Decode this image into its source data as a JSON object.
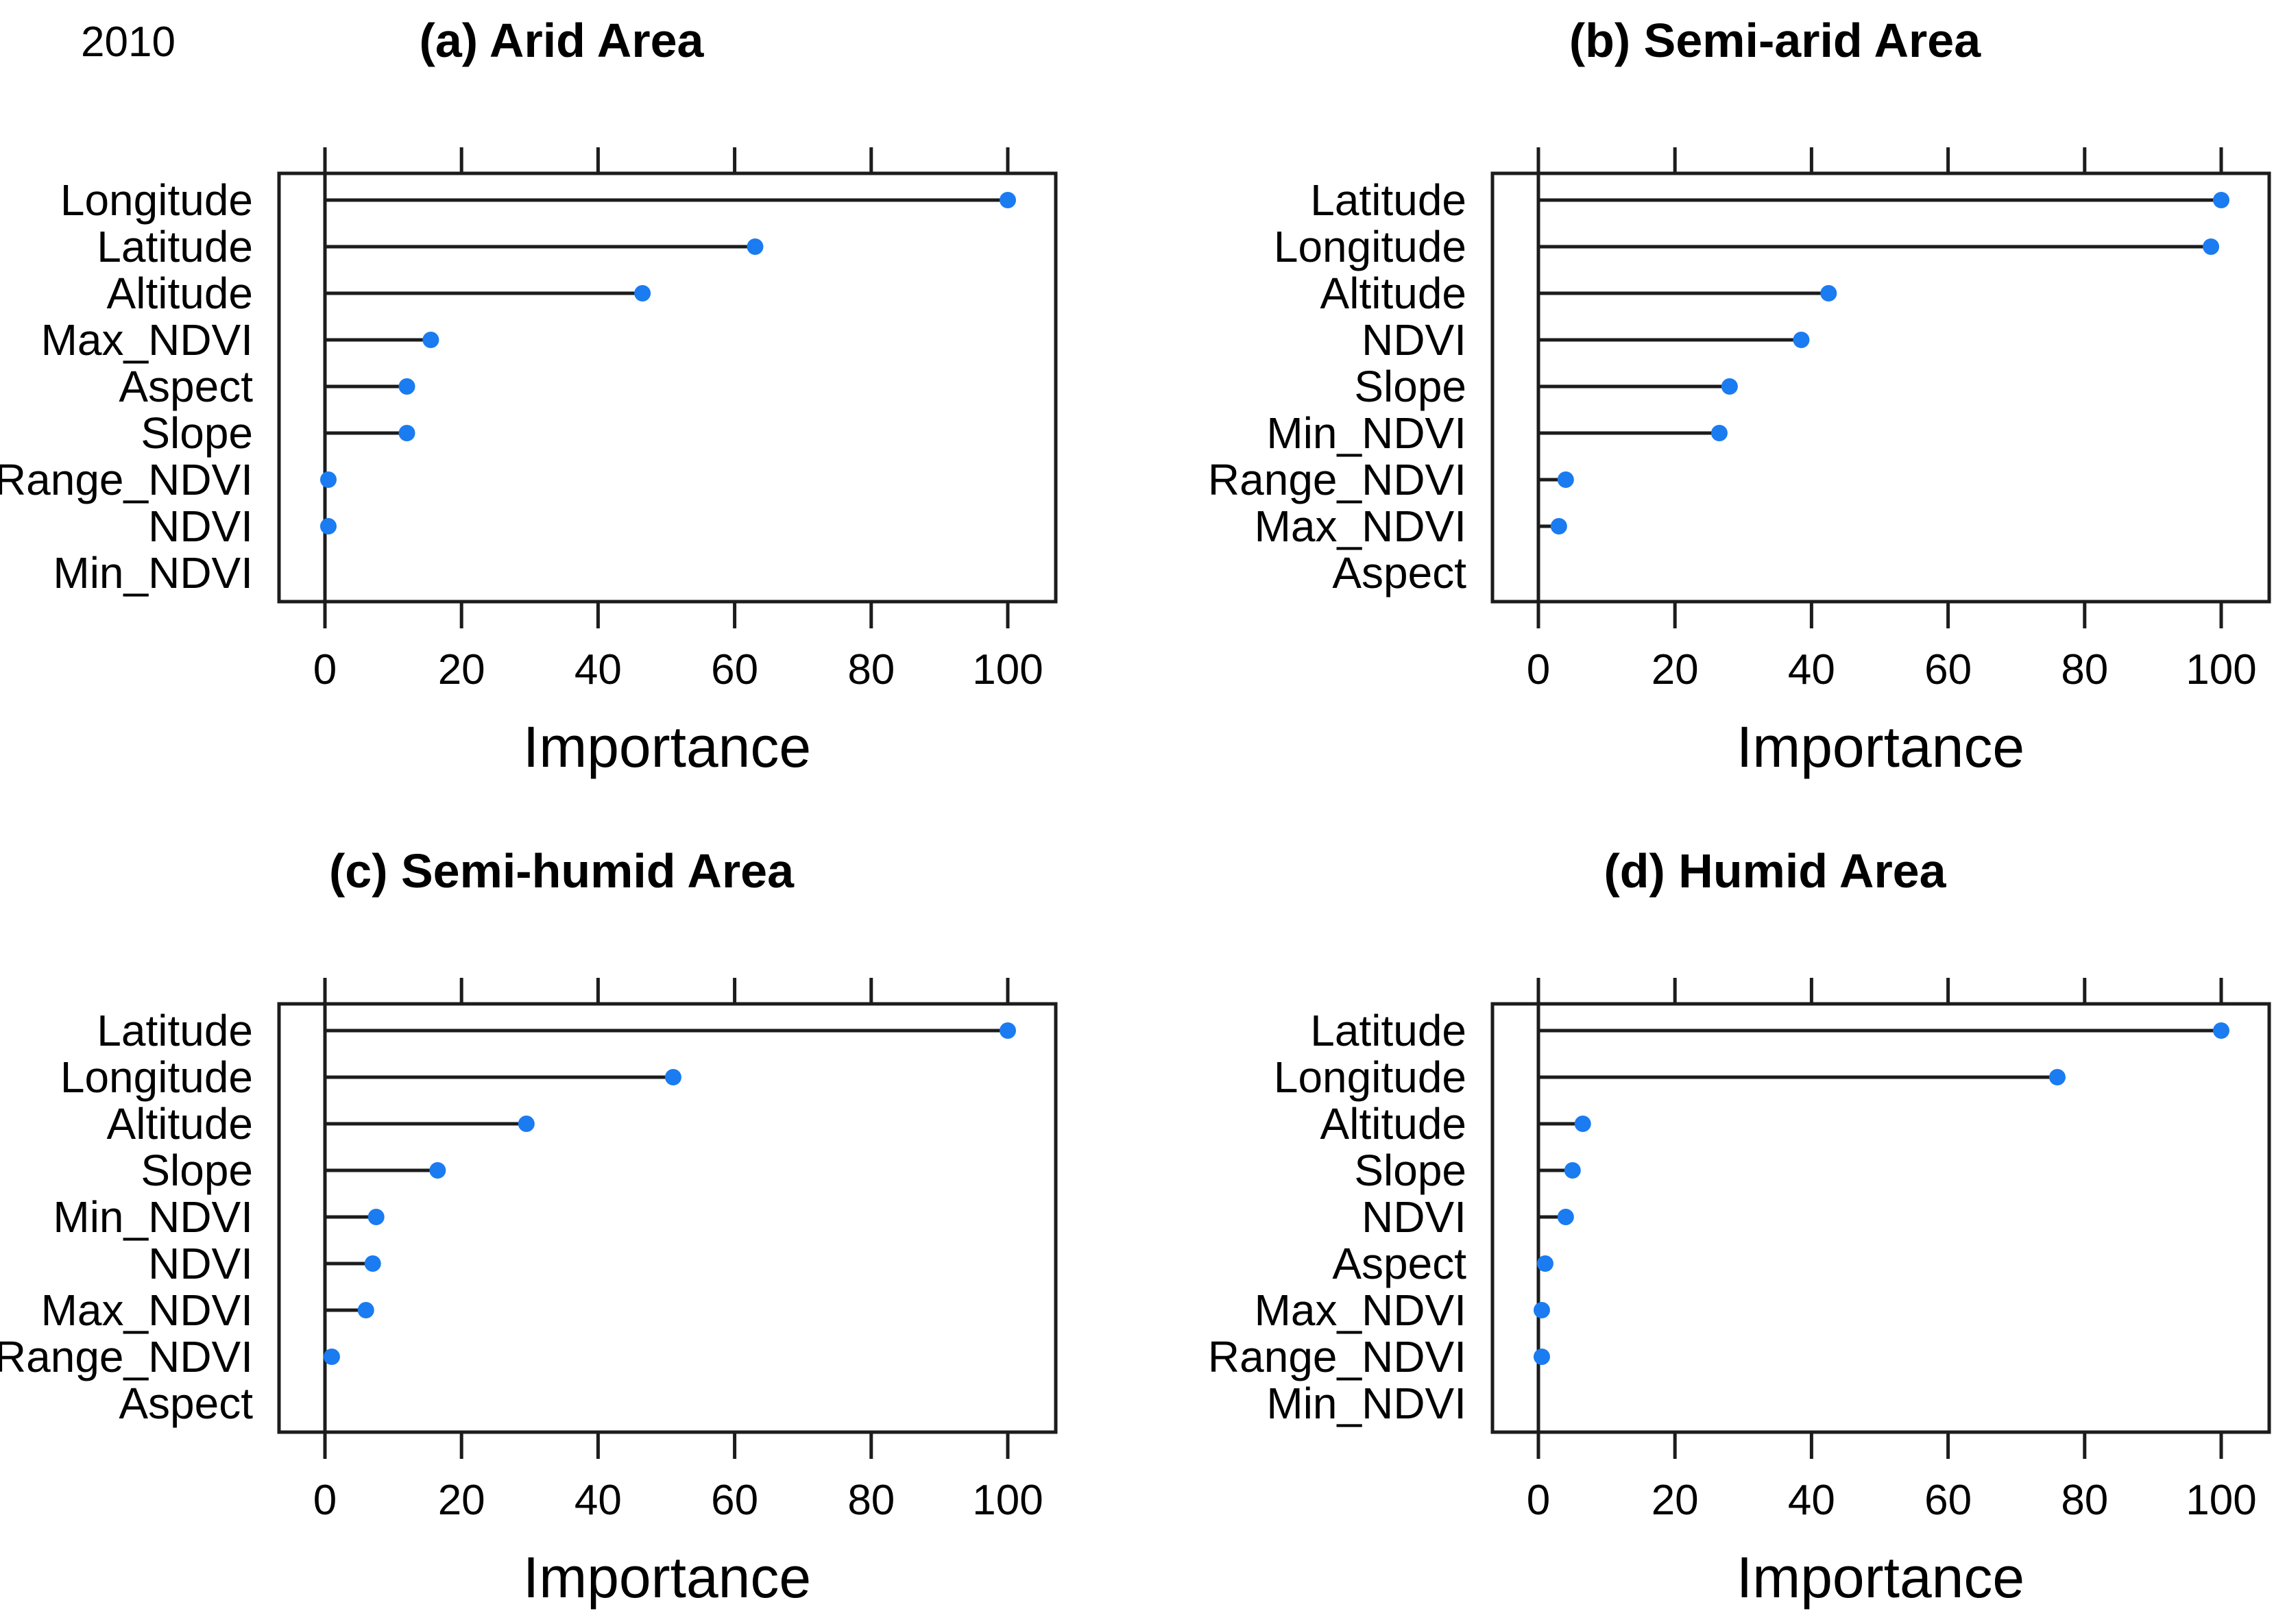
{
  "page": {
    "corner_label": "2010",
    "background": "#ffffff"
  },
  "style": {
    "dot_color": "#1b7bf0",
    "line_color": "#1c1c1c",
    "text_color": "#000000"
  },
  "chart_data": [
    {
      "type": "lollipop-dotchart",
      "panel_id": "a",
      "title": "(a) Arid Area",
      "xlabel": "Importance",
      "xlim": [
        0,
        100
      ],
      "xticks": [
        0,
        20,
        40,
        60,
        80,
        100
      ],
      "grid": false,
      "legend": "none",
      "note": "horizontal lines from 0 to value with blue dot; item with value 0 has no dot",
      "categories": [
        "Longitude",
        "Latitude",
        "Altitude",
        "Max_NDVI",
        "Aspect",
        "Slope",
        "Range_NDVI",
        "NDVI",
        "Min_NDVI"
      ],
      "values": [
        100,
        63,
        46.5,
        15.5,
        12,
        12,
        0.5,
        0.5,
        0
      ]
    },
    {
      "type": "lollipop-dotchart",
      "panel_id": "b",
      "title": "(b) Semi-arid Area",
      "xlabel": "Importance",
      "xlim": [
        0,
        100
      ],
      "xticks": [
        0,
        20,
        40,
        60,
        80,
        100
      ],
      "grid": false,
      "legend": "none",
      "categories": [
        "Latitude",
        "Longitude",
        "Altitude",
        "NDVI",
        "Slope",
        "Min_NDVI",
        "Range_NDVI",
        "Max_NDVI",
        "Aspect"
      ],
      "values": [
        100,
        98.5,
        42.5,
        38.5,
        28,
        26.5,
        4,
        3,
        0
      ]
    },
    {
      "type": "lollipop-dotchart",
      "panel_id": "c",
      "title": "(c) Semi-humid Area",
      "xlabel": "Importance",
      "xlim": [
        0,
        100
      ],
      "xticks": [
        0,
        20,
        40,
        60,
        80,
        100
      ],
      "grid": false,
      "legend": "none",
      "categories": [
        "Latitude",
        "Longitude",
        "Altitude",
        "Slope",
        "Min_NDVI",
        "NDVI",
        "Max_NDVI",
        "Range_NDVI",
        "Aspect"
      ],
      "values": [
        100,
        51,
        29.5,
        16.5,
        7.5,
        7,
        6,
        1,
        0
      ]
    },
    {
      "type": "lollipop-dotchart",
      "panel_id": "d",
      "title": "(d) Humid Area",
      "xlabel": "Importance",
      "xlim": [
        0,
        100
      ],
      "xticks": [
        0,
        20,
        40,
        60,
        80,
        100
      ],
      "grid": false,
      "legend": "none",
      "categories": [
        "Latitude",
        "Longitude",
        "Altitude",
        "Slope",
        "NDVI",
        "Aspect",
        "Max_NDVI",
        "Range_NDVI",
        "Min_NDVI"
      ],
      "values": [
        100,
        76,
        6.5,
        5,
        4,
        1,
        0.5,
        0.5,
        0
      ]
    }
  ]
}
